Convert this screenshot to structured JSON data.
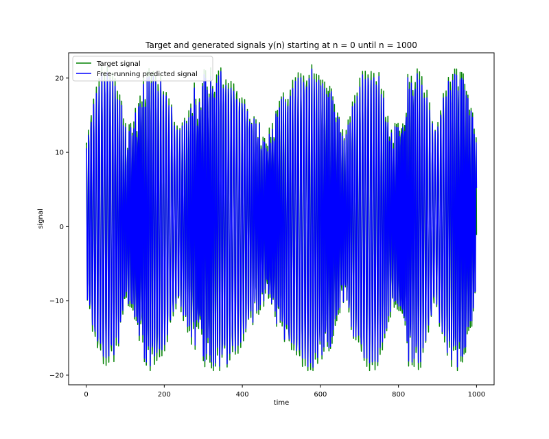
{
  "chart_data": {
    "type": "line",
    "title": "Target and generated signals y(n) starting at n = 0 until n = 1000",
    "xlabel": "time",
    "ylabel": "signal",
    "xlim": [
      -45,
      1045
    ],
    "ylim": [
      -21.3,
      23.4
    ],
    "xticks": [
      0,
      200,
      400,
      600,
      800,
      1000
    ],
    "yticks": [
      -20,
      -10,
      0,
      10,
      20
    ],
    "xtick_labels": [
      "0",
      "200",
      "400",
      "600",
      "800",
      "1000"
    ],
    "ytick_labels": [
      "−20",
      "−10",
      "0",
      "10",
      "20"
    ],
    "grid": false,
    "legend": "top-left",
    "n_points": 1001,
    "signal_range": [
      -19.4,
      21.8
    ],
    "series": [
      {
        "name": "Target signal",
        "color": "#008000"
      },
      {
        "name": "Free-running predicted signal",
        "color": "#0000ff"
      }
    ]
  }
}
